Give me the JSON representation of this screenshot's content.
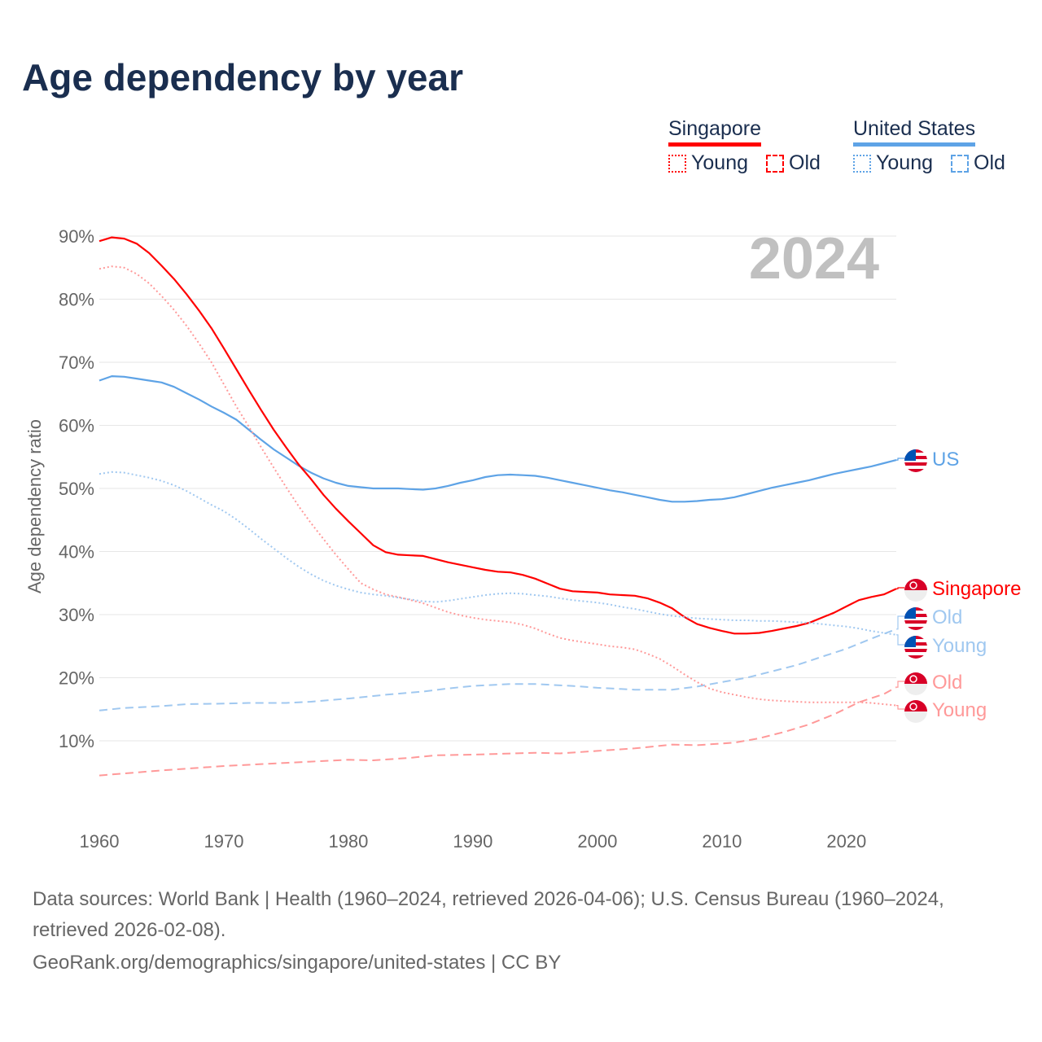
{
  "title": "Age dependency by year",
  "legend": {
    "groups": [
      {
        "name": "Singapore",
        "color": "#ff0000",
        "items": [
          "Young",
          "Old"
        ]
      },
      {
        "name": "United States",
        "color": "#5ea3e6",
        "items": [
          "Young",
          "Old"
        ]
      }
    ]
  },
  "footer": {
    "sources": "Data sources: World Bank | Health (1960–2024, retrieved 2026-04-06); U.S. Census Bureau (1960–2024, retrieved 2026-02-08).",
    "credit": "GeoRank.org/demographics/singapore/united-states | CC BY"
  },
  "chart_data": {
    "type": "line",
    "title": "Age dependency by year",
    "year_label": "2024",
    "ylabel": "Age dependency ratio",
    "xlim": [
      1960,
      2024
    ],
    "ylim": [
      0,
      92
    ],
    "xticks": [
      1960,
      1970,
      1980,
      1990,
      2000,
      2010,
      2020
    ],
    "yticks": [
      10,
      20,
      30,
      40,
      50,
      60,
      70,
      80,
      90
    ],
    "ytick_labels": [
      "10%",
      "20%",
      "30%",
      "40%",
      "50%",
      "60%",
      "70%",
      "80%",
      "90%"
    ],
    "grid": true,
    "series": [
      {
        "name": "US",
        "country": "United States",
        "kind": "total",
        "color": "#5ea3e6",
        "style": "solid",
        "flag": "us",
        "start": 1960,
        "values": [
          67.1,
          67.8,
          67.7,
          67.4,
          67.1,
          66.8,
          66.1,
          65.1,
          64.1,
          63,
          62,
          60.9,
          59.3,
          57.7,
          56.2,
          54.9,
          53.6,
          52.5,
          51.6,
          50.9,
          50.4,
          50.2,
          50,
          50,
          50,
          49.9,
          49.8,
          50,
          50.4,
          50.9,
          51.3,
          51.8,
          52.1,
          52.2,
          52.1,
          52,
          51.7,
          51.3,
          50.9,
          50.5,
          50.1,
          49.7,
          49.4,
          49,
          48.6,
          48.2,
          47.9,
          47.9,
          48,
          48.2,
          48.3,
          48.6,
          49.1,
          49.6,
          50.1,
          50.5,
          50.9,
          51.3,
          51.8,
          52.3,
          52.7,
          53.1,
          53.5,
          54,
          54.5
        ]
      },
      {
        "name": "Singapore",
        "country": "Singapore",
        "kind": "total",
        "color": "#ff0000",
        "style": "solid",
        "flag": "sg",
        "start": 1960,
        "values": [
          89.2,
          89.8,
          89.6,
          88.8,
          87.3,
          85.3,
          83.2,
          80.8,
          78.2,
          75.4,
          72.2,
          68.9,
          65.6,
          62.4,
          59.3,
          56.5,
          53.8,
          51.5,
          49,
          46.8,
          44.8,
          42.9,
          41,
          39.9,
          39.5,
          39.4,
          39.3,
          38.8,
          38.3,
          37.9,
          37.5,
          37.1,
          36.8,
          36.7,
          36.3,
          35.7,
          34.9,
          34.1,
          33.7,
          33.6,
          33.5,
          33.2,
          33.1,
          33,
          32.6,
          31.9,
          31,
          29.6,
          28.5,
          27.9,
          27.4,
          27,
          27,
          27.1,
          27.4,
          27.8,
          28.2,
          28.7,
          29.5,
          30.3,
          31.3,
          32.3,
          32.8,
          33.2,
          34.1
        ]
      },
      {
        "name": "Old",
        "country": "United States",
        "kind": "old",
        "color": "#a0c8f0",
        "style": "dashed",
        "flag": "us",
        "points": [
          [
            1960,
            14.8
          ],
          [
            1962,
            15.2
          ],
          [
            1965,
            15.5
          ],
          [
            1967,
            15.8
          ],
          [
            1970,
            15.9
          ],
          [
            1972,
            16
          ],
          [
            1975,
            16
          ],
          [
            1977,
            16.2
          ],
          [
            1980,
            16.7
          ],
          [
            1983,
            17.3
          ],
          [
            1986,
            17.8
          ],
          [
            1988,
            18.3
          ],
          [
            1990,
            18.7
          ],
          [
            1993,
            19
          ],
          [
            1995,
            19
          ],
          [
            1998,
            18.7
          ],
          [
            2000,
            18.4
          ],
          [
            2003,
            18.1
          ],
          [
            2006,
            18.1
          ],
          [
            2008,
            18.6
          ],
          [
            2010,
            19.3
          ],
          [
            2012,
            20
          ],
          [
            2014,
            21
          ],
          [
            2016,
            22
          ],
          [
            2018,
            23.3
          ],
          [
            2020,
            24.6
          ],
          [
            2022,
            26.2
          ],
          [
            2024,
            27.7
          ]
        ]
      },
      {
        "name": "Young",
        "country": "United States",
        "kind": "young",
        "color": "#a0c8f0",
        "style": "dotted",
        "flag": "us",
        "start": 1960,
        "values": [
          52.3,
          52.6,
          52.5,
          52.1,
          51.7,
          51.2,
          50.5,
          49.6,
          48.5,
          47.4,
          46.4,
          45.1,
          43.6,
          42,
          40.5,
          39,
          37.6,
          36.4,
          35.4,
          34.6,
          34,
          33.5,
          33.2,
          33,
          32.7,
          32.4,
          32.1,
          32,
          32.2,
          32.5,
          32.8,
          33.1,
          33.3,
          33.4,
          33.3,
          33.1,
          32.9,
          32.6,
          32.3,
          32.1,
          31.9,
          31.6,
          31.2,
          30.9,
          30.5,
          30.1,
          29.8,
          29.6,
          29.4,
          29.3,
          29.2,
          29.1,
          29.1,
          29,
          29,
          28.9,
          28.8,
          28.7,
          28.5,
          28.3,
          28.1,
          27.8,
          27.4,
          27.1,
          26.8
        ]
      },
      {
        "name": "Old",
        "country": "Singapore",
        "kind": "old",
        "color": "#ff9999",
        "style": "dashed",
        "flag": "sg",
        "points": [
          [
            1960,
            4.5
          ],
          [
            1965,
            5.3
          ],
          [
            1970,
            6
          ],
          [
            1975,
            6.5
          ],
          [
            1980,
            7
          ],
          [
            1982,
            6.9
          ],
          [
            1985,
            7.3
          ],
          [
            1987,
            7.7
          ],
          [
            1990,
            7.8
          ],
          [
            1995,
            8.1
          ],
          [
            1997,
            8
          ],
          [
            2000,
            8.4
          ],
          [
            2003,
            8.8
          ],
          [
            2006,
            9.4
          ],
          [
            2008,
            9.3
          ],
          [
            2011,
            9.7
          ],
          [
            2013,
            10.4
          ],
          [
            2015,
            11.4
          ],
          [
            2017,
            12.6
          ],
          [
            2019,
            14.2
          ],
          [
            2021,
            16.1
          ],
          [
            2023,
            17.4
          ],
          [
            2024,
            18.5
          ]
        ]
      },
      {
        "name": "Young",
        "country": "Singapore",
        "kind": "young",
        "color": "#ff9999",
        "style": "dotted",
        "flag": "sg",
        "start": 1960,
        "values": [
          84.8,
          85.2,
          85,
          84,
          82.5,
          80.5,
          78.3,
          75.8,
          73,
          70,
          66.5,
          63,
          59.8,
          56.5,
          53.3,
          50.2,
          47.2,
          44.5,
          42,
          39.5,
          37.2,
          35,
          34,
          33.2,
          32.8,
          32.3,
          31.8,
          31.1,
          30.4,
          29.9,
          29.5,
          29.2,
          29,
          28.8,
          28.4,
          27.8,
          27,
          26.3,
          25.9,
          25.6,
          25.3,
          25,
          24.8,
          24.5,
          23.8,
          23,
          21.8,
          20.5,
          19.3,
          18.3,
          17.7,
          17.3,
          16.9,
          16.6,
          16.4,
          16.3,
          16.2,
          16.1,
          16.1,
          16.1,
          16.1,
          16.1,
          16,
          15.8,
          15.6
        ]
      }
    ]
  }
}
